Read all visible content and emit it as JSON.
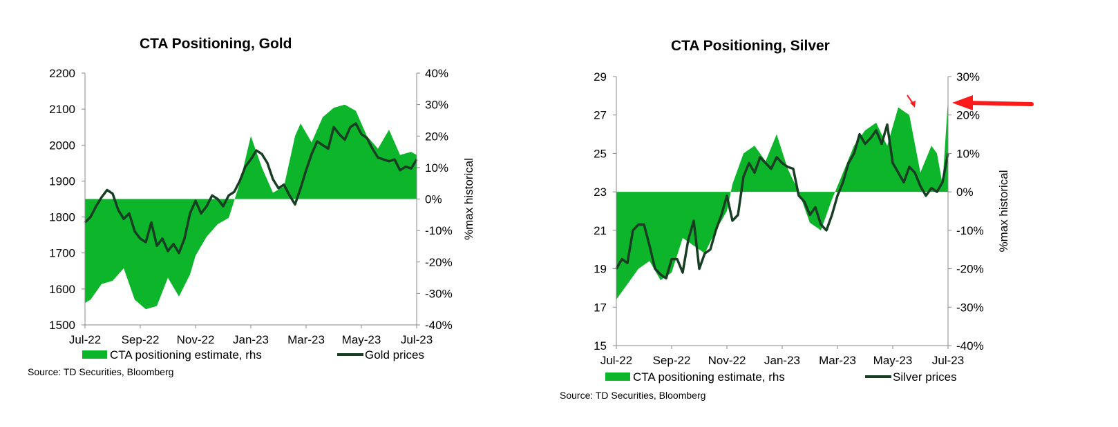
{
  "colors": {
    "area": "#0db52b",
    "line": "#173d22",
    "axis": "#888888",
    "arrow": "#ff1a1a"
  },
  "chart_data": [
    {
      "type": "area",
      "title": "CTA Positioning, Gold",
      "source": "Source: TD Securities, Bloomberg",
      "x_ticks": [
        "Jul-22",
        "Sep-22",
        "Nov-22",
        "Jan-23",
        "Mar-23",
        "May-23",
        "Jul-23"
      ],
      "y_left": {
        "min": 1500,
        "max": 2200,
        "ticks": [
          "1500",
          "1600",
          "1700",
          "1800",
          "1900",
          "2000",
          "2100",
          "2200"
        ]
      },
      "y_right": {
        "label": "%max historical",
        "min": -40,
        "max": 40,
        "ticks": [
          "-40%",
          "-30%",
          "-20%",
          "-10%",
          "0%",
          "10%",
          "20%",
          "30%",
          "40%"
        ]
      },
      "legend": [
        "CTA positioning estimate, rhs",
        "Gold prices"
      ],
      "series": [
        {
          "name": "CTA positioning estimate, rhs",
          "axis": "right",
          "x": [
            0,
            0.1,
            0.3,
            0.5,
            0.7,
            0.9,
            1.1,
            1.3,
            1.5,
            1.7,
            1.9,
            2.0,
            2.2,
            2.4,
            2.6,
            2.8,
            3.0,
            3.2,
            3.4,
            3.6,
            3.8,
            3.9,
            4.1,
            4.3,
            4.5,
            4.7,
            4.9,
            5.1,
            5.3,
            5.5,
            5.7,
            5.9,
            6.0
          ],
          "y": [
            -33,
            -32,
            -27,
            -26,
            -22,
            -32,
            -35,
            -34,
            -25,
            -31,
            -24,
            -18,
            -12,
            -8,
            -6,
            5,
            20,
            10,
            2,
            4,
            20,
            24,
            18,
            26,
            29,
            30,
            28,
            20,
            16,
            22,
            14,
            15,
            14
          ]
        },
        {
          "name": "Gold prices",
          "axis": "left",
          "x": [
            0,
            0.1,
            0.2,
            0.3,
            0.4,
            0.5,
            0.6,
            0.7,
            0.8,
            0.9,
            1.0,
            1.1,
            1.2,
            1.3,
            1.4,
            1.5,
            1.6,
            1.7,
            1.8,
            1.9,
            2.0,
            2.1,
            2.2,
            2.3,
            2.4,
            2.5,
            2.6,
            2.7,
            2.8,
            2.9,
            3.0,
            3.1,
            3.2,
            3.3,
            3.4,
            3.5,
            3.6,
            3.7,
            3.8,
            3.9,
            4.0,
            4.1,
            4.2,
            4.3,
            4.4,
            4.5,
            4.6,
            4.7,
            4.8,
            4.9,
            5.0,
            5.1,
            5.2,
            5.3,
            5.4,
            5.5,
            5.6,
            5.7,
            5.8,
            5.9,
            6.0
          ],
          "y": [
            1785,
            1800,
            1830,
            1855,
            1875,
            1865,
            1820,
            1795,
            1810,
            1760,
            1740,
            1730,
            1785,
            1720,
            1740,
            1705,
            1725,
            1700,
            1740,
            1810,
            1845,
            1810,
            1830,
            1860,
            1850,
            1830,
            1860,
            1870,
            1900,
            1940,
            1960,
            1985,
            1975,
            1950,
            1905,
            1880,
            1890,
            1860,
            1835,
            1880,
            1930,
            1975,
            2010,
            2000,
            1990,
            2050,
            2030,
            2015,
            2050,
            2060,
            2030,
            2020,
            1990,
            1965,
            1960,
            1955,
            1960,
            1930,
            1940,
            1935,
            1960
          ]
        }
      ]
    },
    {
      "type": "area",
      "title": "CTA Positioning, Silver",
      "source": "Source: TD Securities, Bloomberg",
      "x_ticks": [
        "Jul-22",
        "Sep-22",
        "Nov-22",
        "Jan-23",
        "Mar-23",
        "May-23",
        "Jul-23"
      ],
      "y_left": {
        "min": 15,
        "max": 29,
        "ticks": [
          "15",
          "17",
          "19",
          "21",
          "23",
          "25",
          "27",
          "29"
        ]
      },
      "y_right": {
        "label": "%max historical",
        "min": -40,
        "max": 30,
        "ticks": [
          "-40%",
          "-30%",
          "-20%",
          "-10%",
          "0%",
          "10%",
          "20%",
          "30%"
        ]
      },
      "legend": [
        "CTA positioning estimate, rhs",
        "Silver prices"
      ],
      "series": [
        {
          "name": "CTA positioning estimate, rhs",
          "axis": "right",
          "x": [
            0,
            0.2,
            0.4,
            0.6,
            0.8,
            1.0,
            1.2,
            1.4,
            1.6,
            1.8,
            2.0,
            2.1,
            2.3,
            2.5,
            2.7,
            2.9,
            3.1,
            3.3,
            3.5,
            3.7,
            3.9,
            4.1,
            4.3,
            4.5,
            4.7,
            4.9,
            5.1,
            5.3,
            5.5,
            5.7,
            5.8,
            5.9,
            6.0
          ],
          "y": [
            -28,
            -24,
            -20,
            -18,
            -23,
            -21,
            -12,
            -14,
            -16,
            -10,
            -5,
            2,
            10,
            12,
            8,
            15,
            6,
            0,
            -8,
            -10,
            -2,
            5,
            12,
            16,
            18,
            12,
            22,
            20,
            5,
            12,
            10,
            2,
            24
          ]
        },
        {
          "name": "Silver prices",
          "axis": "left",
          "x": [
            0,
            0.1,
            0.2,
            0.3,
            0.4,
            0.5,
            0.6,
            0.7,
            0.8,
            0.9,
            1.0,
            1.1,
            1.2,
            1.3,
            1.4,
            1.5,
            1.6,
            1.7,
            1.8,
            1.9,
            2.0,
            2.1,
            2.2,
            2.3,
            2.4,
            2.5,
            2.6,
            2.7,
            2.8,
            2.9,
            3.0,
            3.1,
            3.2,
            3.3,
            3.4,
            3.5,
            3.6,
            3.7,
            3.8,
            3.9,
            4.0,
            4.1,
            4.2,
            4.3,
            4.4,
            4.5,
            4.6,
            4.7,
            4.8,
            4.9,
            5.0,
            5.1,
            5.2,
            5.3,
            5.4,
            5.5,
            5.6,
            5.7,
            5.8,
            5.9,
            6.0
          ],
          "y": [
            19.0,
            19.5,
            19.3,
            21.0,
            21.3,
            21.3,
            20.2,
            19.0,
            18.7,
            18.5,
            19.5,
            19.5,
            18.8,
            20.5,
            21.5,
            19.0,
            19.8,
            20.0,
            21.0,
            21.8,
            22.8,
            21.5,
            21.8,
            23.8,
            24.5,
            24.0,
            24.8,
            24.5,
            24.2,
            24.8,
            24.5,
            24.3,
            24.2,
            22.8,
            22.5,
            21.8,
            22.2,
            21.3,
            21.0,
            21.8,
            22.8,
            23.5,
            24.5,
            25.0,
            26.0,
            25.5,
            25.8,
            26.2,
            25.5,
            26.5,
            24.5,
            24.0,
            23.5,
            24.3,
            24.0,
            23.3,
            22.8,
            23.2,
            23.0,
            23.5,
            25.0
          ]
        }
      ]
    }
  ]
}
